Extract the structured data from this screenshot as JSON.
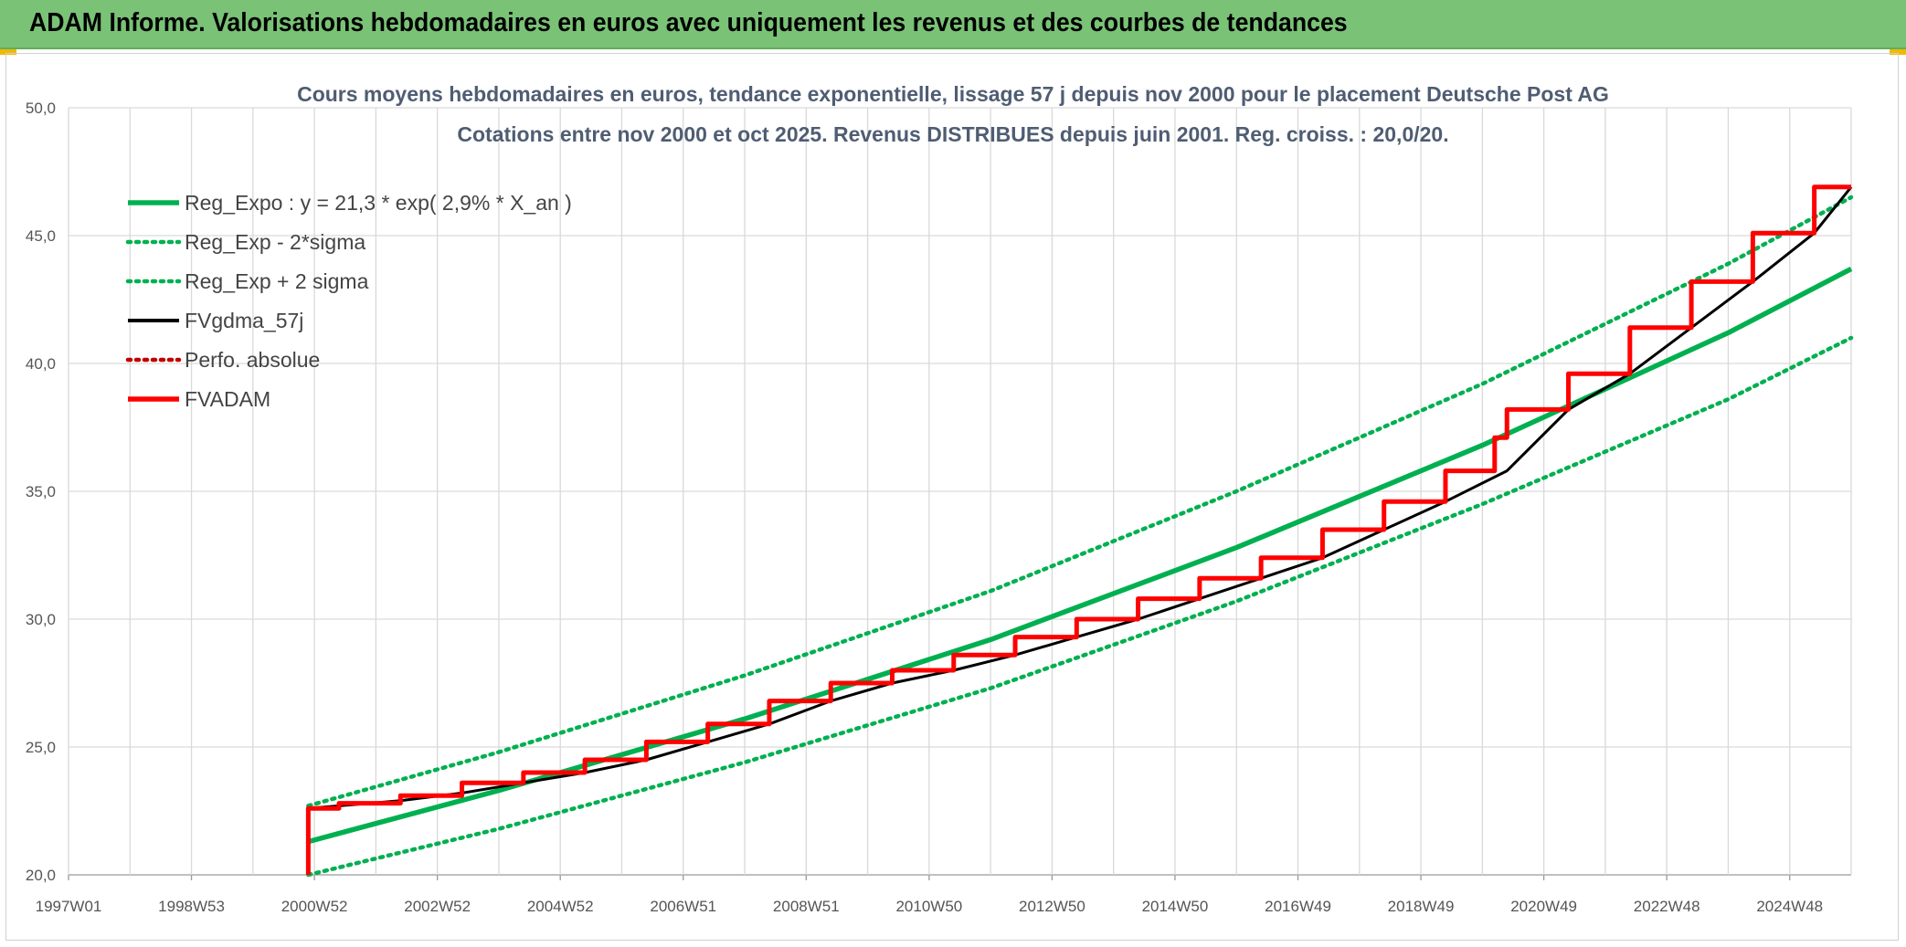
{
  "header": {
    "title": "ADAM Informe. Valorisations hebdomadaires en euros avec uniquement les revenus et des courbes de tendances"
  },
  "colors": {
    "banner": "#79c276",
    "trend": "#00b050",
    "fvgdma": "#000000",
    "fvadam": "#ff0000",
    "perfo": "#c00000"
  },
  "chart_data": {
    "type": "line",
    "title": "Cours moyens hebdomadaires en euros, tendance exponentielle, lissage 57 j depuis nov 2000 pour le placement Deutsche Post AG",
    "subtitle": "Cotations entre nov 2000 et oct 2025. Revenus DISTRIBUES depuis juin 2001. Reg. croiss. : 20,0/20.",
    "x_tick_labels": [
      "1997W01",
      "1998W53",
      "2000W52",
      "2002W52",
      "2004W52",
      "2006W51",
      "2008W51",
      "2010W50",
      "2012W50",
      "2014W50",
      "2016W49",
      "2018W49",
      "2020W49",
      "2022W48",
      "2024W48"
    ],
    "y_tick_labels": [
      "20,0",
      "25,0",
      "30,0",
      "35,0",
      "40,0",
      "45,0",
      "50,0"
    ],
    "ylim": [
      20,
      50
    ],
    "xlim": [
      1997.0,
      2026.0
    ],
    "grid": true,
    "legend_position": "top-left",
    "series": [
      {
        "name": "Reg_Expo : y = 21,3 * exp( 2,9% *  X_an )",
        "style": "solid-thick",
        "color": "#00b050",
        "x": [
          2000.9,
          2004.0,
          2008.0,
          2012.0,
          2016.0,
          2020.0,
          2024.0,
          2026.0
        ],
        "y": [
          21.3,
          23.3,
          26.1,
          29.2,
          32.8,
          36.8,
          41.2,
          43.7
        ]
      },
      {
        "name": "Reg_Exp - 2*sigma",
        "style": "dotted",
        "color": "#00b050",
        "x": [
          2000.9,
          2004.0,
          2008.0,
          2012.0,
          2016.0,
          2020.0,
          2024.0,
          2026.0
        ],
        "y": [
          20.0,
          21.8,
          24.4,
          27.3,
          30.7,
          34.5,
          38.6,
          41.0
        ]
      },
      {
        "name": "Reg_Exp + 2 sigma",
        "style": "dotted",
        "color": "#00b050",
        "x": [
          2000.9,
          2004.0,
          2008.0,
          2012.0,
          2016.0,
          2020.0,
          2024.0,
          2026.0
        ],
        "y": [
          22.7,
          24.8,
          27.8,
          31.1,
          35.0,
          39.2,
          43.9,
          46.5
        ]
      },
      {
        "name": "FVgdma_57j",
        "style": "solid",
        "color": "#000000",
        "x": [
          2000.9,
          2001.4,
          2002.4,
          2003.4,
          2004.4,
          2005.4,
          2006.4,
          2007.4,
          2008.4,
          2009.4,
          2010.4,
          2011.4,
          2012.4,
          2013.4,
          2014.4,
          2015.4,
          2016.4,
          2017.4,
          2018.4,
          2019.4,
          2020.4,
          2021.4,
          2022.4,
          2023.4,
          2024.4,
          2025.4,
          2026.0
        ],
        "y": [
          22.6,
          22.7,
          22.9,
          23.2,
          23.6,
          24.0,
          24.5,
          25.2,
          25.9,
          26.8,
          27.5,
          28.0,
          28.6,
          29.3,
          30.0,
          30.8,
          31.6,
          32.4,
          33.5,
          34.6,
          35.8,
          38.2,
          39.6,
          41.4,
          43.2,
          45.1,
          46.9
        ]
      },
      {
        "name": "Perfo. absolue",
        "style": "dotted",
        "color": "#c00000",
        "x": [],
        "y": []
      },
      {
        "name": "FVADAM",
        "style": "step-thick",
        "color": "#ff0000",
        "x": [
          2000.9,
          2000.9,
          2001.4,
          2002.4,
          2003.4,
          2004.4,
          2005.4,
          2006.4,
          2007.4,
          2008.4,
          2009.4,
          2010.4,
          2011.4,
          2012.4,
          2013.4,
          2014.4,
          2015.4,
          2016.4,
          2017.4,
          2018.4,
          2019.4,
          2020.2,
          2020.4,
          2021.4,
          2022.4,
          2023.4,
          2024.4,
          2025.4,
          2026.0
        ],
        "y": [
          20.0,
          22.6,
          22.8,
          23.1,
          23.6,
          24.0,
          24.5,
          25.2,
          25.9,
          26.8,
          27.5,
          28.0,
          28.6,
          29.3,
          30.0,
          30.8,
          31.6,
          32.4,
          33.5,
          34.6,
          35.8,
          37.1,
          38.2,
          39.6,
          41.4,
          43.2,
          45.1,
          46.9,
          46.9
        ]
      }
    ]
  }
}
